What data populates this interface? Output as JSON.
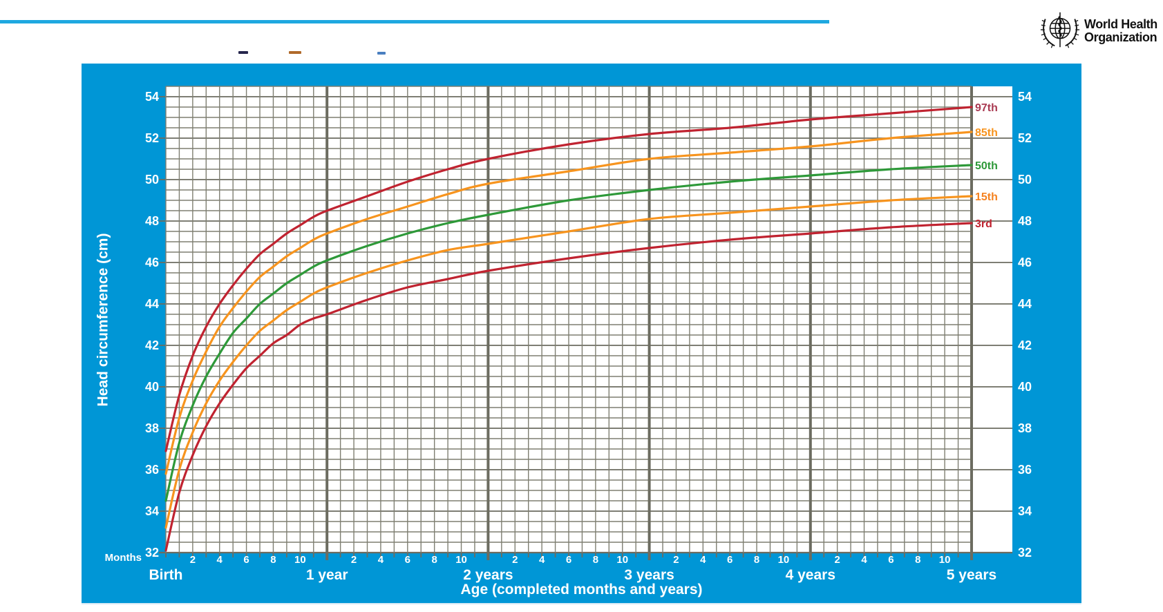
{
  "page": {
    "top_rule_color": "#1EA8E0",
    "panel_color": "#0096D6"
  },
  "logo": {
    "org_line1": "World Health",
    "org_line2": "Organization"
  },
  "chart": {
    "ylabel": "Head circumference (cm)",
    "xlabel": "Age (completed months and years)",
    "months_axis_label": "Months",
    "grid_minor_color": "#7E7E71",
    "grid_major_color": "#6C6C60",
    "y_tick_values": [
      54,
      52,
      50,
      48,
      46,
      44,
      42,
      40,
      38,
      36,
      34,
      32
    ],
    "month_numbers": [
      2,
      4,
      6,
      8,
      10
    ],
    "year_labels": [
      "Birth",
      "1 year",
      "2 years",
      "3 years",
      "4 years",
      "5 years"
    ]
  },
  "chart_data": {
    "type": "line",
    "title": "",
    "xlabel": "Age (completed months and years)",
    "ylabel": "Head circumference (cm)",
    "x_unit": "months",
    "xlim": [
      0,
      60
    ],
    "ylim": [
      32,
      54.5
    ],
    "y_minor_step": 0.5,
    "y_major_step": 2,
    "x_minor_step_months": 1,
    "x_major_step_months": 12,
    "grid": true,
    "legend_position": "inline-right",
    "x_months": [
      0,
      1,
      2,
      3,
      4,
      5,
      6,
      7,
      8,
      9,
      10,
      11,
      12,
      15,
      18,
      21,
      24,
      30,
      36,
      42,
      48,
      54,
      60
    ],
    "series": [
      {
        "name": "97th",
        "color": "#C02330",
        "label_color": "#A93A52",
        "values": [
          36.9,
          39.6,
          41.5,
          42.9,
          44.0,
          44.9,
          45.7,
          46.4,
          46.9,
          47.4,
          47.8,
          48.2,
          48.5,
          49.2,
          49.9,
          50.5,
          51.0,
          51.7,
          52.2,
          52.5,
          52.9,
          53.2,
          53.5
        ]
      },
      {
        "name": "85th",
        "color": "#F7941E",
        "label_color": "#F7941E",
        "values": [
          35.8,
          38.5,
          40.3,
          41.7,
          42.9,
          43.8,
          44.6,
          45.3,
          45.8,
          46.3,
          46.7,
          47.1,
          47.4,
          48.1,
          48.7,
          49.3,
          49.8,
          50.4,
          51.0,
          51.3,
          51.6,
          52.0,
          52.3
        ]
      },
      {
        "name": "50th",
        "color": "#2E9939",
        "label_color": "#2E9939",
        "values": [
          34.5,
          37.3,
          39.1,
          40.5,
          41.6,
          42.6,
          43.3,
          44.0,
          44.5,
          45.0,
          45.4,
          45.8,
          46.1,
          46.8,
          47.4,
          47.9,
          48.3,
          49.0,
          49.5,
          49.9,
          50.2,
          50.5,
          50.7
        ]
      },
      {
        "name": "15th",
        "color": "#F7941E",
        "label_color": "#F58220",
        "values": [
          33.2,
          36.0,
          37.8,
          39.2,
          40.3,
          41.2,
          42.0,
          42.7,
          43.2,
          43.7,
          44.1,
          44.5,
          44.8,
          45.5,
          46.1,
          46.6,
          46.9,
          47.5,
          48.1,
          48.4,
          48.7,
          49.0,
          49.2
        ]
      },
      {
        "name": "3rd",
        "color": "#C02330",
        "label_color": "#C02330",
        "values": [
          32.1,
          34.9,
          36.7,
          38.1,
          39.2,
          40.1,
          40.9,
          41.5,
          42.1,
          42.5,
          43.0,
          43.3,
          43.5,
          44.2,
          44.8,
          45.2,
          45.6,
          46.2,
          46.7,
          47.1,
          47.4,
          47.7,
          47.9
        ]
      }
    ]
  }
}
